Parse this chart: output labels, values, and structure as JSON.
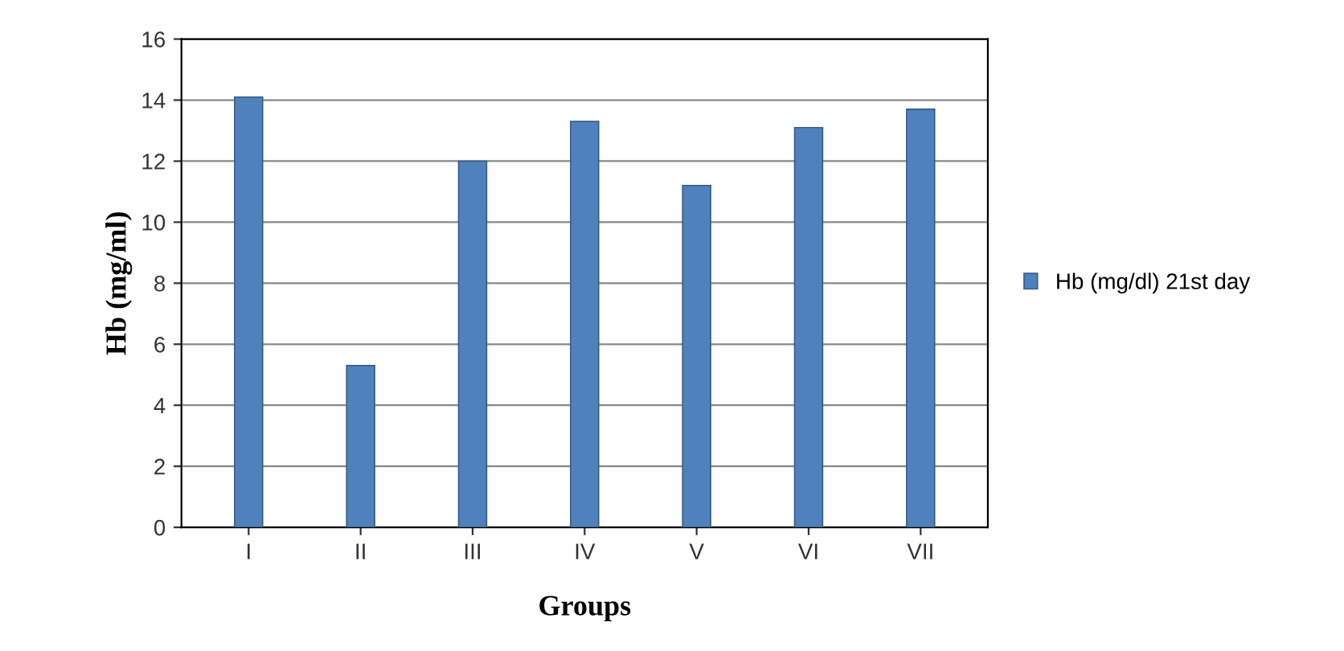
{
  "chart_data": {
    "type": "bar",
    "xlabel": "Groups",
    "ylabel": "Hb (mg/ml)",
    "categories": [
      "I",
      "II",
      "III",
      "IV",
      "V",
      "VI",
      "VII"
    ],
    "series": [
      {
        "name": "Hb (mg/dl) 21st day",
        "color": "#4f81bd",
        "values": [
          14.1,
          5.3,
          12.0,
          13.3,
          11.2,
          13.1,
          13.7
        ]
      }
    ],
    "ylim": [
      0,
      16
    ],
    "yticks": [
      0,
      2,
      4,
      6,
      8,
      10,
      12,
      14,
      16
    ],
    "grid": "y",
    "legend": "right"
  }
}
